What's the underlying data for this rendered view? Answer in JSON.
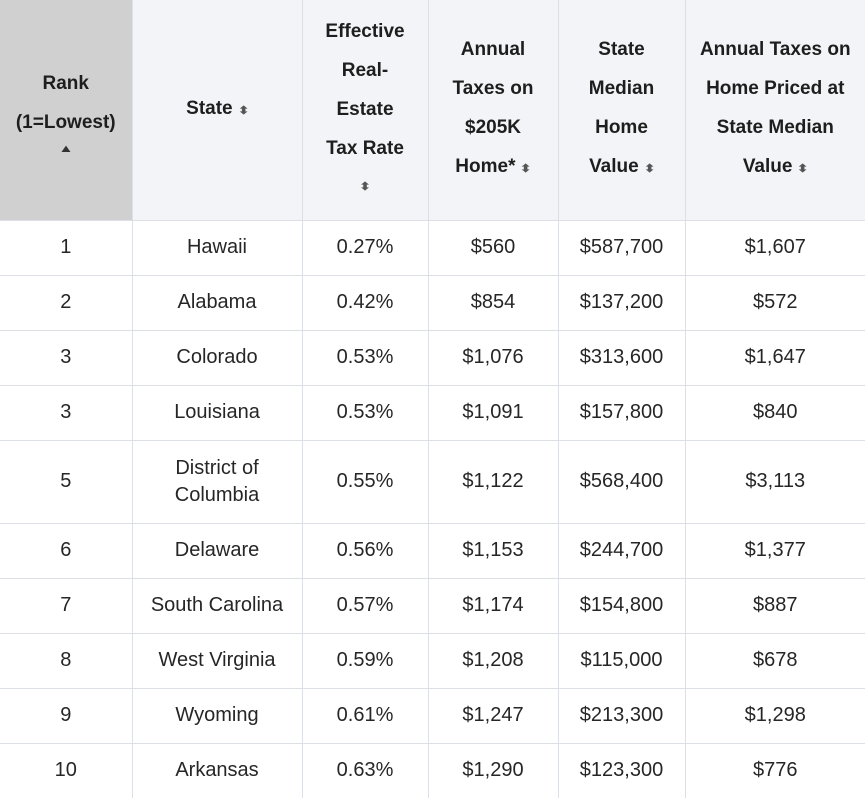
{
  "headers": {
    "rank": "Rank (1=Lowest)",
    "state": "State",
    "rate": "Effective Real-Estate Tax Rate",
    "taxes_205k": "Annual Taxes on $205K Home*",
    "median_value": "State Median Home Value",
    "taxes_median": "Annual Taxes on Home Priced at State Median Value"
  },
  "icons": {
    "sort": "sort-updown-icon",
    "sort_active": "sort-ascending-icon"
  },
  "colors": {
    "header_bg": "#f2f4f7",
    "active_header_bg": "#d0d0d0",
    "border": "#dcdfe4"
  },
  "rows": [
    {
      "rank": "1",
      "state": "Hawaii",
      "rate": "0.27%",
      "taxes_205k": "$560",
      "median_value": "$587,700",
      "taxes_median": "$1,607"
    },
    {
      "rank": "2",
      "state": "Alabama",
      "rate": "0.42%",
      "taxes_205k": "$854",
      "median_value": "$137,200",
      "taxes_median": "$572"
    },
    {
      "rank": "3",
      "state": "Colorado",
      "rate": "0.53%",
      "taxes_205k": "$1,076",
      "median_value": "$313,600",
      "taxes_median": "$1,647"
    },
    {
      "rank": "3",
      "state": "Louisiana",
      "rate": "0.53%",
      "taxes_205k": "$1,091",
      "median_value": "$157,800",
      "taxes_median": "$840"
    },
    {
      "rank": "5",
      "state": "District of Columbia",
      "rate": "0.55%",
      "taxes_205k": "$1,122",
      "median_value": "$568,400",
      "taxes_median": "$3,113"
    },
    {
      "rank": "6",
      "state": "Delaware",
      "rate": "0.56%",
      "taxes_205k": "$1,153",
      "median_value": "$244,700",
      "taxes_median": "$1,377"
    },
    {
      "rank": "7",
      "state": "South Carolina",
      "rate": "0.57%",
      "taxes_205k": "$1,174",
      "median_value": "$154,800",
      "taxes_median": "$887"
    },
    {
      "rank": "8",
      "state": "West Virginia",
      "rate": "0.59%",
      "taxes_205k": "$1,208",
      "median_value": "$115,000",
      "taxes_median": "$678"
    },
    {
      "rank": "9",
      "state": "Wyoming",
      "rate": "0.61%",
      "taxes_205k": "$1,247",
      "median_value": "$213,300",
      "taxes_median": "$1,298"
    },
    {
      "rank": "10",
      "state": "Arkansas",
      "rate": "0.63%",
      "taxes_205k": "$1,290",
      "median_value": "$123,300",
      "taxes_median": "$776"
    }
  ]
}
